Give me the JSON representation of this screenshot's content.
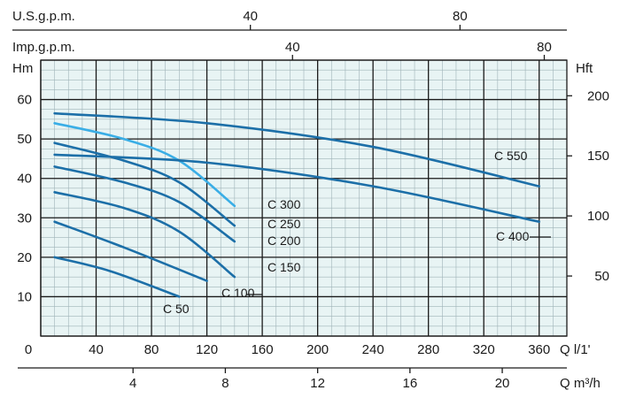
{
  "chart_data": {
    "type": "line",
    "title": "",
    "plot_background": "#e8f4f4",
    "grid": true,
    "units": {
      "q_lpm": "Q  l/1'",
      "q_m3h": "Q  m³/h",
      "usgpm": "U.S.g.p.m.",
      "impgpm": "Imp.g.p.m.",
      "head_m": "Hm",
      "head_ft": "Hft"
    },
    "axes": {
      "x_lpm": {
        "range": [
          0,
          380
        ],
        "ticks": [
          0,
          40,
          80,
          120,
          160,
          200,
          240,
          280,
          320,
          360
        ]
      },
      "x_m3h": {
        "ticks": [
          4,
          8,
          12,
          16,
          20
        ]
      },
      "x_usgpm": {
        "ticks": [
          40,
          80
        ]
      },
      "x_impgpm": {
        "ticks": [
          40,
          80
        ]
      },
      "y_m": {
        "range": [
          0,
          70
        ],
        "ticks": [
          10,
          20,
          30,
          40,
          50,
          60
        ]
      },
      "y_ft": {
        "ticks": [
          50,
          100,
          150,
          200
        ]
      }
    },
    "series": [
      {
        "name": "C 50",
        "color": "#1c6fa8",
        "x": [
          10,
          50,
          100
        ],
        "y": [
          20,
          16.5,
          10
        ]
      },
      {
        "name": "C 100",
        "color": "#1c6fa8",
        "x": [
          10,
          60,
          120
        ],
        "y": [
          29,
          22.5,
          14
        ]
      },
      {
        "name": "C 150",
        "color": "#1c6fa8",
        "x": [
          10,
          60,
          100,
          140
        ],
        "y": [
          36.5,
          32.5,
          26.5,
          15
        ]
      },
      {
        "name": "C 200",
        "color": "#1c6fa8",
        "x": [
          10,
          60,
          100,
          140
        ],
        "y": [
          43,
          39,
          34,
          24
        ]
      },
      {
        "name": "C 250",
        "color": "#1c6fa8",
        "x": [
          10,
          60,
          100,
          140
        ],
        "y": [
          49,
          44.5,
          39,
          28
        ]
      },
      {
        "name": "C 300",
        "color": "#3aaee6",
        "x": [
          10,
          60,
          100,
          140
        ],
        "y": [
          54,
          50,
          44.5,
          33
        ]
      },
      {
        "name": "C 400",
        "color": "#1c6fa8",
        "x": [
          10,
          120,
          240,
          360
        ],
        "y": [
          46,
          44,
          38,
          29
        ]
      },
      {
        "name": "C 550",
        "color": "#1c6fa8",
        "x": [
          10,
          120,
          240,
          360
        ],
        "y": [
          56.5,
          54,
          48,
          38
        ]
      }
    ]
  }
}
